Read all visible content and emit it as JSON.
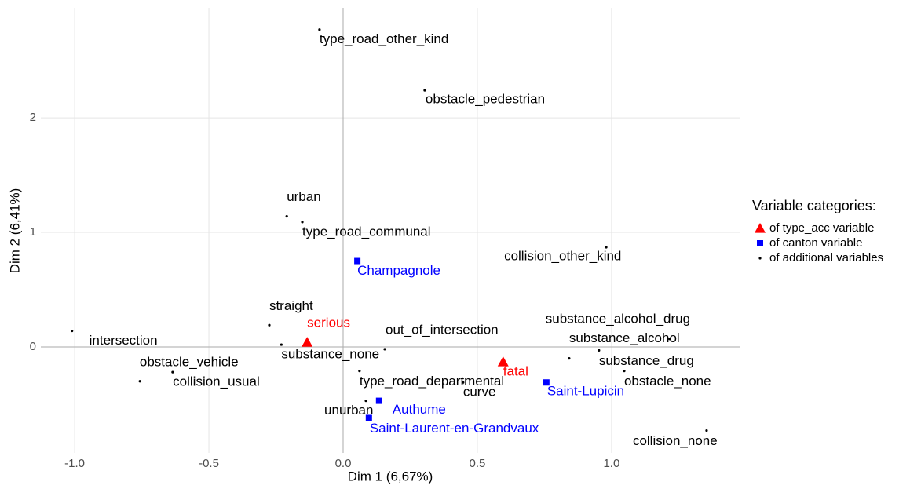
{
  "chart_data": {
    "type": "scatter",
    "x_label": "Dim 1 (6,67%)",
    "y_label": "Dim 2 (6,41%)",
    "xlim": [
      -1.126,
      1.477
    ],
    "ylim": [
      -0.925,
      2.96
    ],
    "xticks": [
      {
        "value": -1,
        "label": "-1.0"
      },
      -0.5,
      {
        "value": 0,
        "label": "0.0"
      },
      0.5,
      {
        "value": 1,
        "label": "1.0"
      }
    ],
    "yticks": [
      0,
      1,
      2
    ],
    "grid": true,
    "reference_lines": {
      "x": 0,
      "y": 0
    },
    "legend": {
      "title": "Variable categories:",
      "position": "right"
    },
    "series": [
      {
        "name": "of type_acc variable",
        "color": "#ff0000",
        "marker": "triangle",
        "labels": [
          "serious",
          "fatal"
        ],
        "x": [
          -0.134,
          0.596
        ],
        "values": [
          0.04,
          -0.13
        ]
      },
      {
        "name": "of canton variable",
        "color": "#0000ff",
        "marker": "square",
        "labels": [
          "Champagnole",
          "Saint-Lupicin",
          "Authume",
          "Saint-Laurent-en-Grandvaux"
        ],
        "x": [
          0.053,
          0.757,
          0.134,
          0.096
        ],
        "values": [
          0.75,
          -0.31,
          -0.47,
          -0.62
        ]
      },
      {
        "name": "of additional variables",
        "color": "#000000",
        "marker": "dot",
        "labels": [
          "type_road_other_kind",
          "obstacle_pedestrian",
          "urban",
          "type_road_communal",
          "collision_other_kind",
          "straight",
          "intersection",
          "substance_none",
          "out_of_intersection",
          "substance_alcohol_drug",
          "substance_alcohol",
          "substance_drug",
          "obstacle_none",
          "type_road_departmental",
          "curve",
          "obstacle_vehicle",
          "collision_usual",
          "unurban",
          "collision_none"
        ],
        "x": [
          -0.088,
          0.304,
          -0.21,
          -0.152,
          0.98,
          -0.275,
          -1.01,
          -0.23,
          0.155,
          1.216,
          0.842,
          0.953,
          1.047,
          0.061,
          0.447,
          -0.635,
          -0.757,
          0.085,
          1.354
        ],
        "values": [
          2.77,
          2.24,
          1.14,
          1.09,
          0.87,
          0.19,
          0.14,
          0.02,
          -0.02,
          0.07,
          -0.1,
          -0.03,
          -0.21,
          -0.21,
          -0.31,
          -0.22,
          -0.3,
          -0.47,
          -0.73
        ]
      }
    ]
  }
}
